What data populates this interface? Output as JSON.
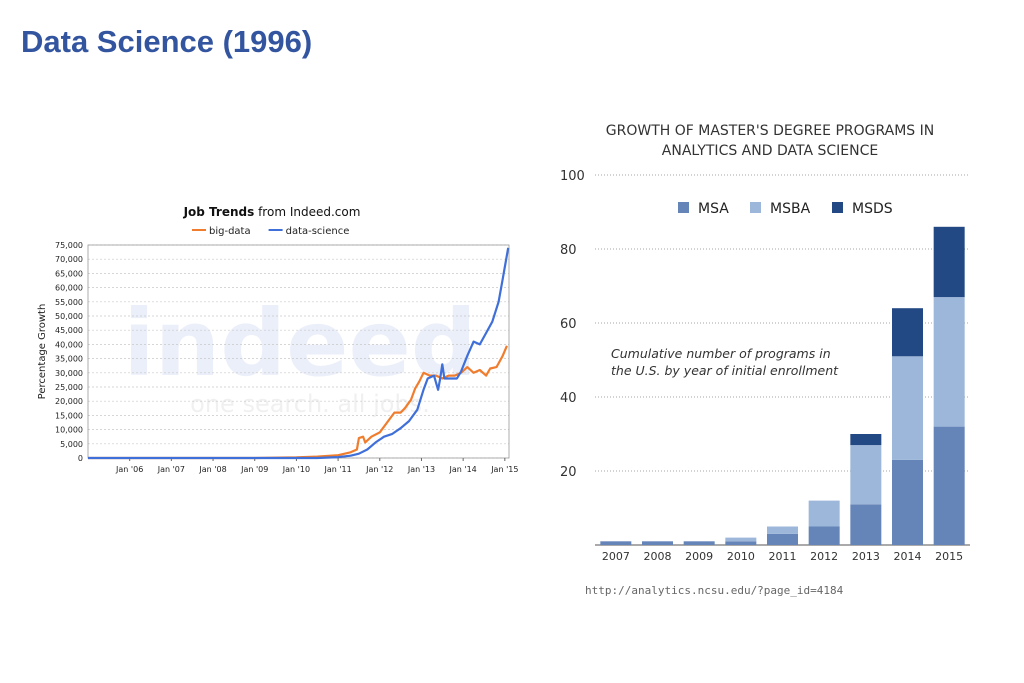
{
  "slide": {
    "title": "Data Science (1996)",
    "source_url": "http://analytics.ncsu.edu/?page_id=4184"
  },
  "chart_data": [
    {
      "type": "line",
      "title_bold": "Job Trends",
      "title_rest": " from Indeed.com",
      "watermark": {
        "logo": "indeed",
        "tagline": "one search. all jobs."
      },
      "xlabel": "",
      "ylabel": "Percentage Growth",
      "x_ticks": [
        "Jan '06",
        "Jan '07",
        "Jan '08",
        "Jan '09",
        "Jan '10",
        "Jan '11",
        "Jan '12",
        "Jan '13",
        "Jan '14",
        "Jan '15"
      ],
      "y_ticks": [
        "0",
        "5,000",
        "10,000",
        "15,000",
        "20,000",
        "25,000",
        "30,000",
        "35,000",
        "40,000",
        "45,000",
        "50,000",
        "55,000",
        "60,000",
        "65,000",
        "70,000",
        "75,000"
      ],
      "xlim": [
        2005.0,
        2015.1
      ],
      "ylim": [
        0,
        75000
      ],
      "legend_position": "top-center",
      "grid": true,
      "series": [
        {
          "name": "big-data",
          "color": "#f07d2e",
          "points": [
            [
              2005.0,
              0
            ],
            [
              2007.0,
              0
            ],
            [
              2009.0,
              0
            ],
            [
              2010.0,
              200
            ],
            [
              2010.5,
              500
            ],
            [
              2011.0,
              1000
            ],
            [
              2011.3,
              2000
            ],
            [
              2011.45,
              3000
            ],
            [
              2011.5,
              7000
            ],
            [
              2011.6,
              7500
            ],
            [
              2011.65,
              5500
            ],
            [
              2011.8,
              7500
            ],
            [
              2012.0,
              9000
            ],
            [
              2012.2,
              13000
            ],
            [
              2012.35,
              16000
            ],
            [
              2012.5,
              16000
            ],
            [
              2012.6,
              17500
            ],
            [
              2012.75,
              20500
            ],
            [
              2012.85,
              24500
            ],
            [
              2012.95,
              27000
            ],
            [
              2013.05,
              30000
            ],
            [
              2013.2,
              29000
            ],
            [
              2013.35,
              29000
            ],
            [
              2013.5,
              28000
            ],
            [
              2013.65,
              29000
            ],
            [
              2013.8,
              29000
            ],
            [
              2013.95,
              30000
            ],
            [
              2014.1,
              32000
            ],
            [
              2014.25,
              30000
            ],
            [
              2014.4,
              31000
            ],
            [
              2014.55,
              29000
            ],
            [
              2014.65,
              31500
            ],
            [
              2014.8,
              32000
            ],
            [
              2014.95,
              36000
            ],
            [
              2015.05,
              39500
            ]
          ]
        },
        {
          "name": "data-science",
          "color": "#3f6fd8",
          "points": [
            [
              2005.0,
              0
            ],
            [
              2008.0,
              0
            ],
            [
              2010.5,
              0
            ],
            [
              2011.0,
              300
            ],
            [
              2011.3,
              800
            ],
            [
              2011.5,
              1500
            ],
            [
              2011.7,
              3000
            ],
            [
              2011.9,
              5500
            ],
            [
              2012.1,
              7500
            ],
            [
              2012.3,
              8500
            ],
            [
              2012.5,
              10500
            ],
            [
              2012.7,
              13000
            ],
            [
              2012.9,
              17000
            ],
            [
              2013.05,
              24000
            ],
            [
              2013.15,
              28000
            ],
            [
              2013.3,
              29000
            ],
            [
              2013.4,
              24000
            ],
            [
              2013.45,
              28000
            ],
            [
              2013.5,
              33000
            ],
            [
              2013.55,
              28000
            ],
            [
              2013.7,
              28000
            ],
            [
              2013.85,
              28000
            ],
            [
              2013.95,
              30500
            ],
            [
              2014.1,
              36000
            ],
            [
              2014.25,
              41000
            ],
            [
              2014.4,
              40000
            ],
            [
              2014.55,
              44000
            ],
            [
              2014.7,
              48000
            ],
            [
              2014.85,
              55000
            ],
            [
              2014.95,
              63000
            ],
            [
              2015.02,
              69000
            ],
            [
              2015.08,
              74000
            ]
          ]
        }
      ]
    },
    {
      "type": "bar",
      "stacked": true,
      "title": "GROWTH OF MASTER'S DEGREE PROGRAMS IN ANALYTICS AND DATA SCIENCE",
      "title_lines": [
        "GROWTH OF MASTER'S DEGREE PROGRAMS IN",
        "ANALYTICS AND DATA SCIENCE"
      ],
      "annotation_lines": [
        "Cumulative number of programs in",
        "the U.S. by year of initial enrollment"
      ],
      "xlabel": "",
      "ylabel": "",
      "categories": [
        "2007",
        "2008",
        "2009",
        "2010",
        "2011",
        "2012",
        "2013",
        "2014",
        "2015"
      ],
      "ylim": [
        0,
        100
      ],
      "y_ticks": [
        20,
        40,
        60,
        80,
        100
      ],
      "legend_position": "top-center",
      "grid": true,
      "series": [
        {
          "name": "MSA",
          "color": "#6584b8",
          "values": [
            1,
            1,
            1,
            1,
            3,
            5,
            11,
            23,
            32
          ]
        },
        {
          "name": "MSBA",
          "color": "#9db7da",
          "values": [
            0,
            0,
            0,
            1,
            2,
            7,
            16,
            28,
            35
          ]
        },
        {
          "name": "MSDS",
          "color": "#234985",
          "values": [
            0,
            0,
            0,
            0,
            0,
            0,
            3,
            13,
            19
          ]
        }
      ]
    }
  ]
}
